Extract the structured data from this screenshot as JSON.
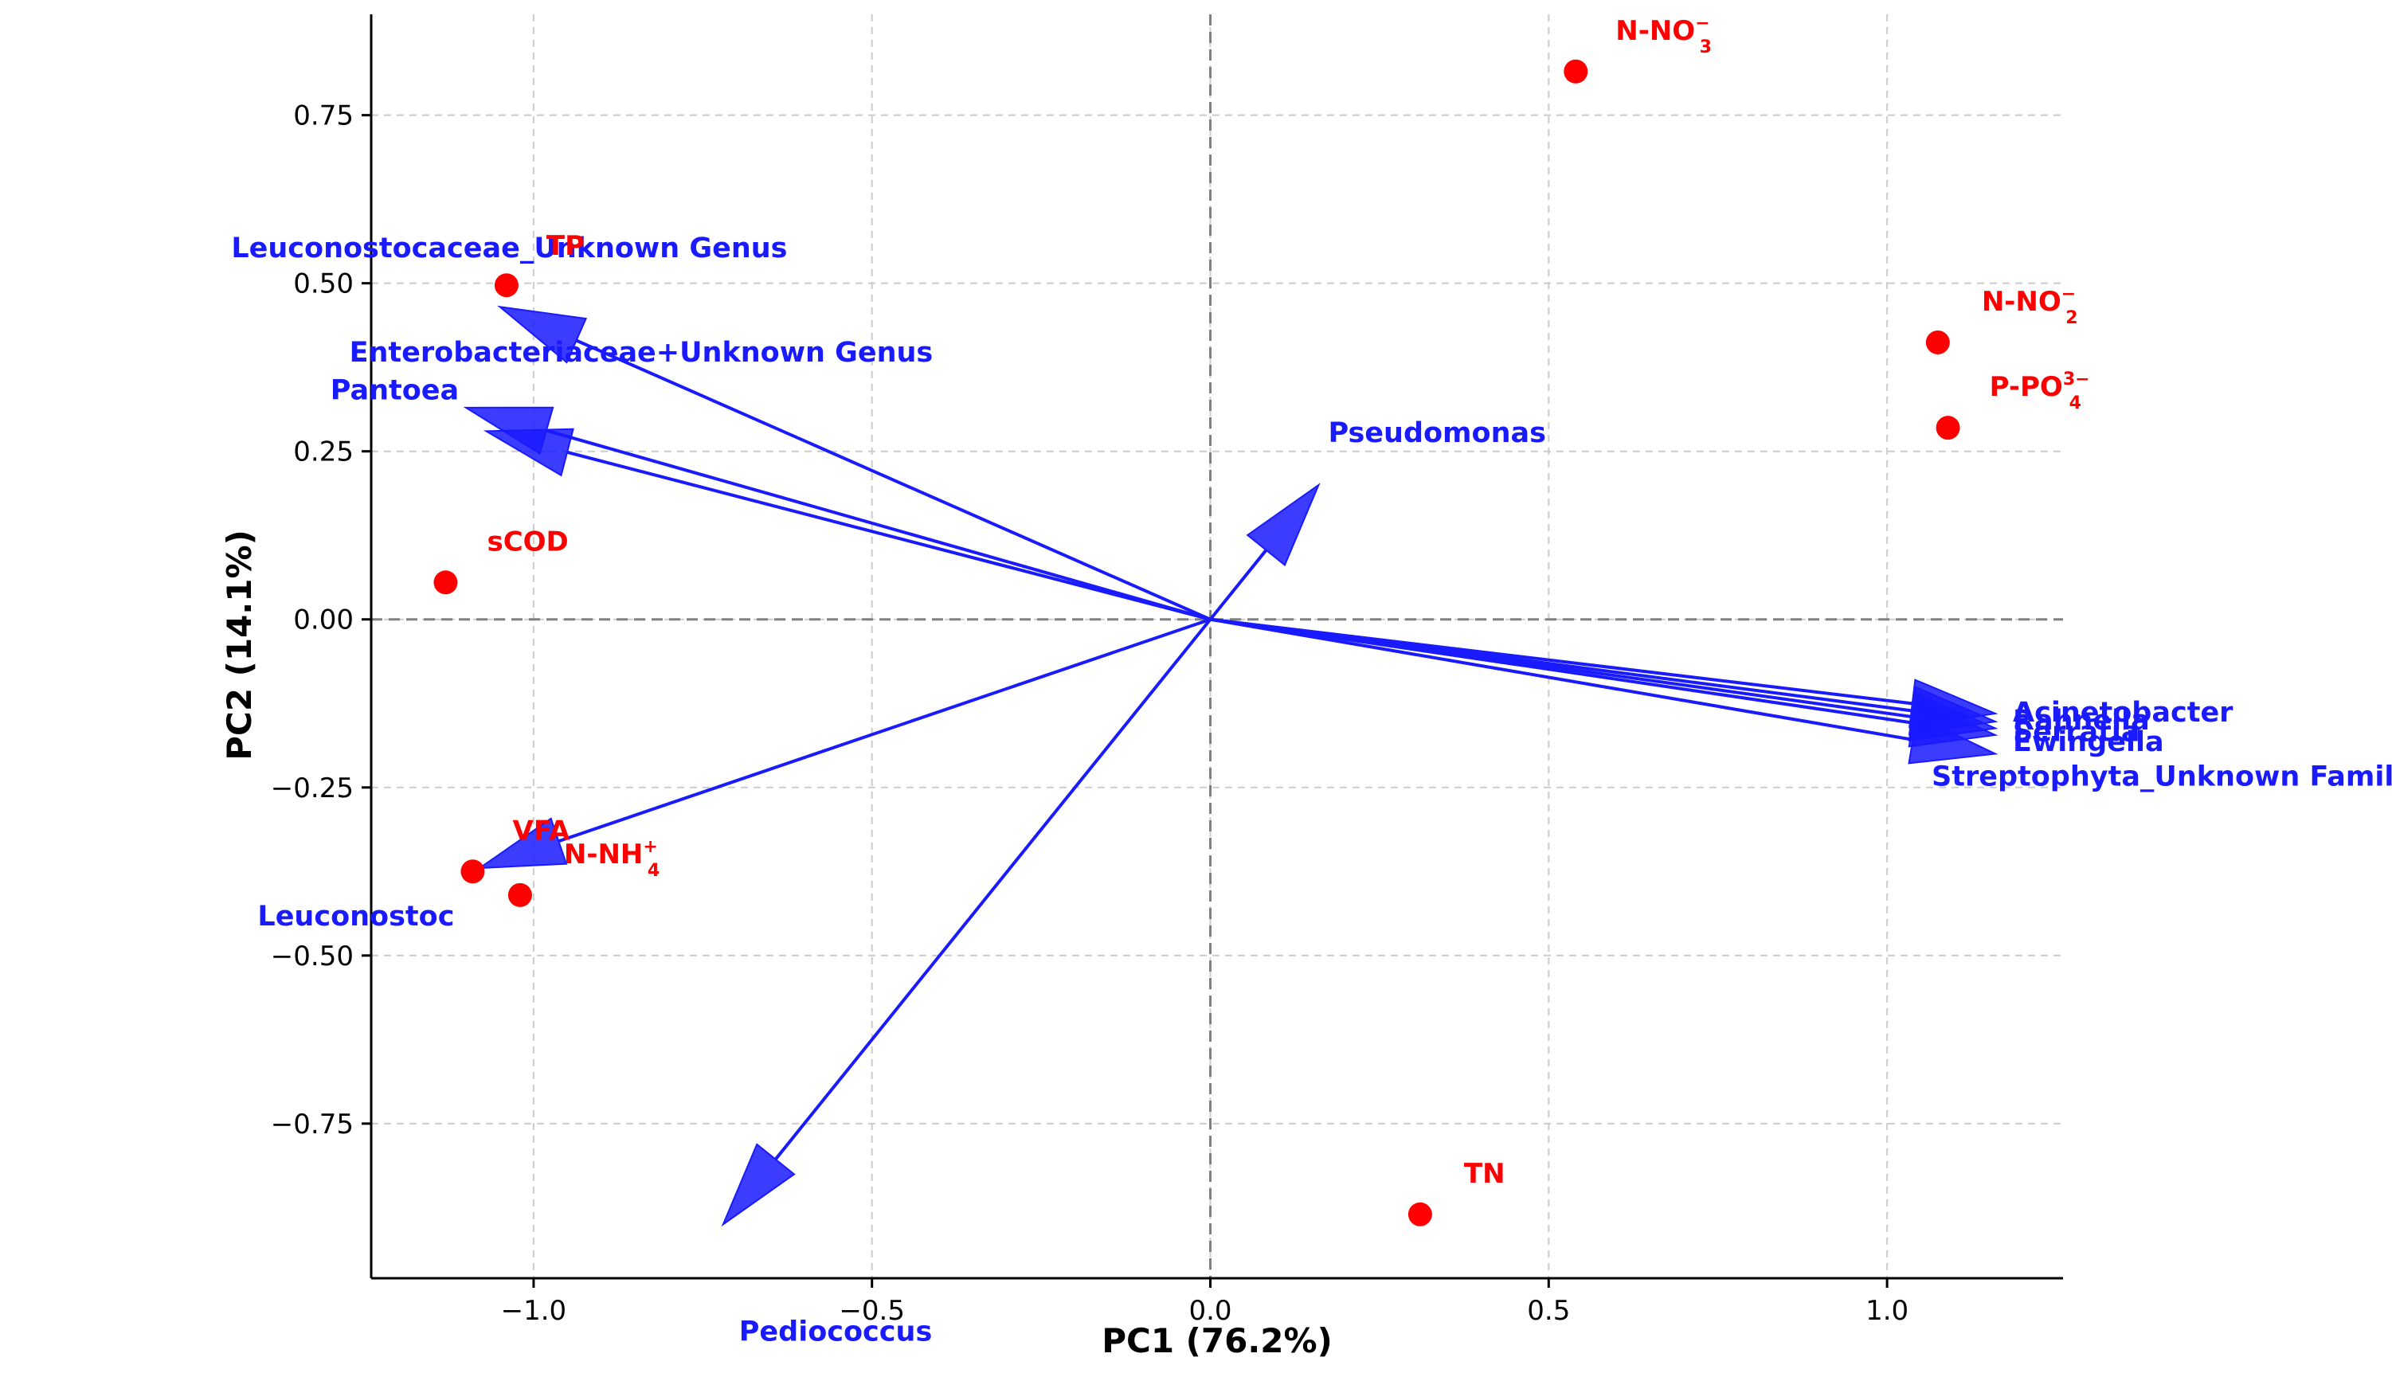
{
  "colors": {
    "point": "#ff0000",
    "vector": "#1a1aff",
    "vector_label": "#1a1aff",
    "grid": "#cccccc",
    "zero_line": "#808080"
  },
  "chart_data": {
    "type": "scatter",
    "subtype": "pca-biplot",
    "xlabel": "PC1 (76.2%)",
    "ylabel": "PC2 (14.1%)",
    "xlim": [
      -1.24,
      1.26
    ],
    "ylim": [
      -0.98,
      0.9
    ],
    "xticks": [
      -1.0,
      -0.5,
      0.0,
      0.5,
      1.0
    ],
    "xtick_labels": [
      "−1.0",
      "−0.5",
      "0.0",
      "0.5",
      "1.0"
    ],
    "yticks": [
      -0.75,
      -0.5,
      -0.25,
      0.0,
      0.25,
      0.5,
      0.75
    ],
    "ytick_labels": [
      "−0.75",
      "−0.50",
      "−0.25",
      "0.00",
      "0.25",
      "0.50",
      "0.75"
    ],
    "grid": true,
    "points": [
      {
        "label": "N-NO",
        "sub": "3",
        "sup": "−",
        "x": 0.54,
        "y": 0.815
      },
      {
        "label": "TP",
        "sub": "",
        "sup": "",
        "x": -1.04,
        "y": 0.497
      },
      {
        "label": "N-NO",
        "sub": "2",
        "sup": "−",
        "x": 1.075,
        "y": 0.412
      },
      {
        "label": "P-PO",
        "sub": "4",
        "sup": "3−",
        "x": 1.09,
        "y": 0.285
      },
      {
        "label": "sCOD",
        "sub": "",
        "sup": "",
        "x": -1.13,
        "y": 0.055
      },
      {
        "label": "VFA",
        "sub": "",
        "sup": "",
        "x": -1.09,
        "y": -0.375
      },
      {
        "label": "N-NH",
        "sub": "4",
        "sup": "+",
        "x": -1.02,
        "y": -0.41
      },
      {
        "label": "TN",
        "sub": "",
        "sup": "",
        "x": 0.31,
        "y": -0.885
      }
    ],
    "vectors": [
      {
        "label": "Leuconostocaceae_Unknown Genus",
        "x": -1.05,
        "y": 0.465
      },
      {
        "label": "Enterobacteriaceae+Unknown Genus",
        "x": -1.1,
        "y": 0.315
      },
      {
        "label": "Pantoea",
        "x": -1.07,
        "y": 0.28
      },
      {
        "label": "Pseudomonas",
        "x": 0.16,
        "y": 0.2
      },
      {
        "label": "Acinetobacter",
        "x": 1.16,
        "y": -0.14
      },
      {
        "label": "Rahnella",
        "x": 1.16,
        "y": -0.152
      },
      {
        "label": "Serratia",
        "x": 1.16,
        "y": -0.162
      },
      {
        "label": "Ewingella",
        "x": 1.16,
        "y": -0.172
      },
      {
        "label": "Streptophyta_Unknown Family",
        "x": 1.16,
        "y": -0.2
      },
      {
        "label": "Leuconostoc",
        "x": -1.08,
        "y": -0.37
      },
      {
        "label": "Pediococcus",
        "x": -0.72,
        "y": -0.9
      }
    ]
  }
}
